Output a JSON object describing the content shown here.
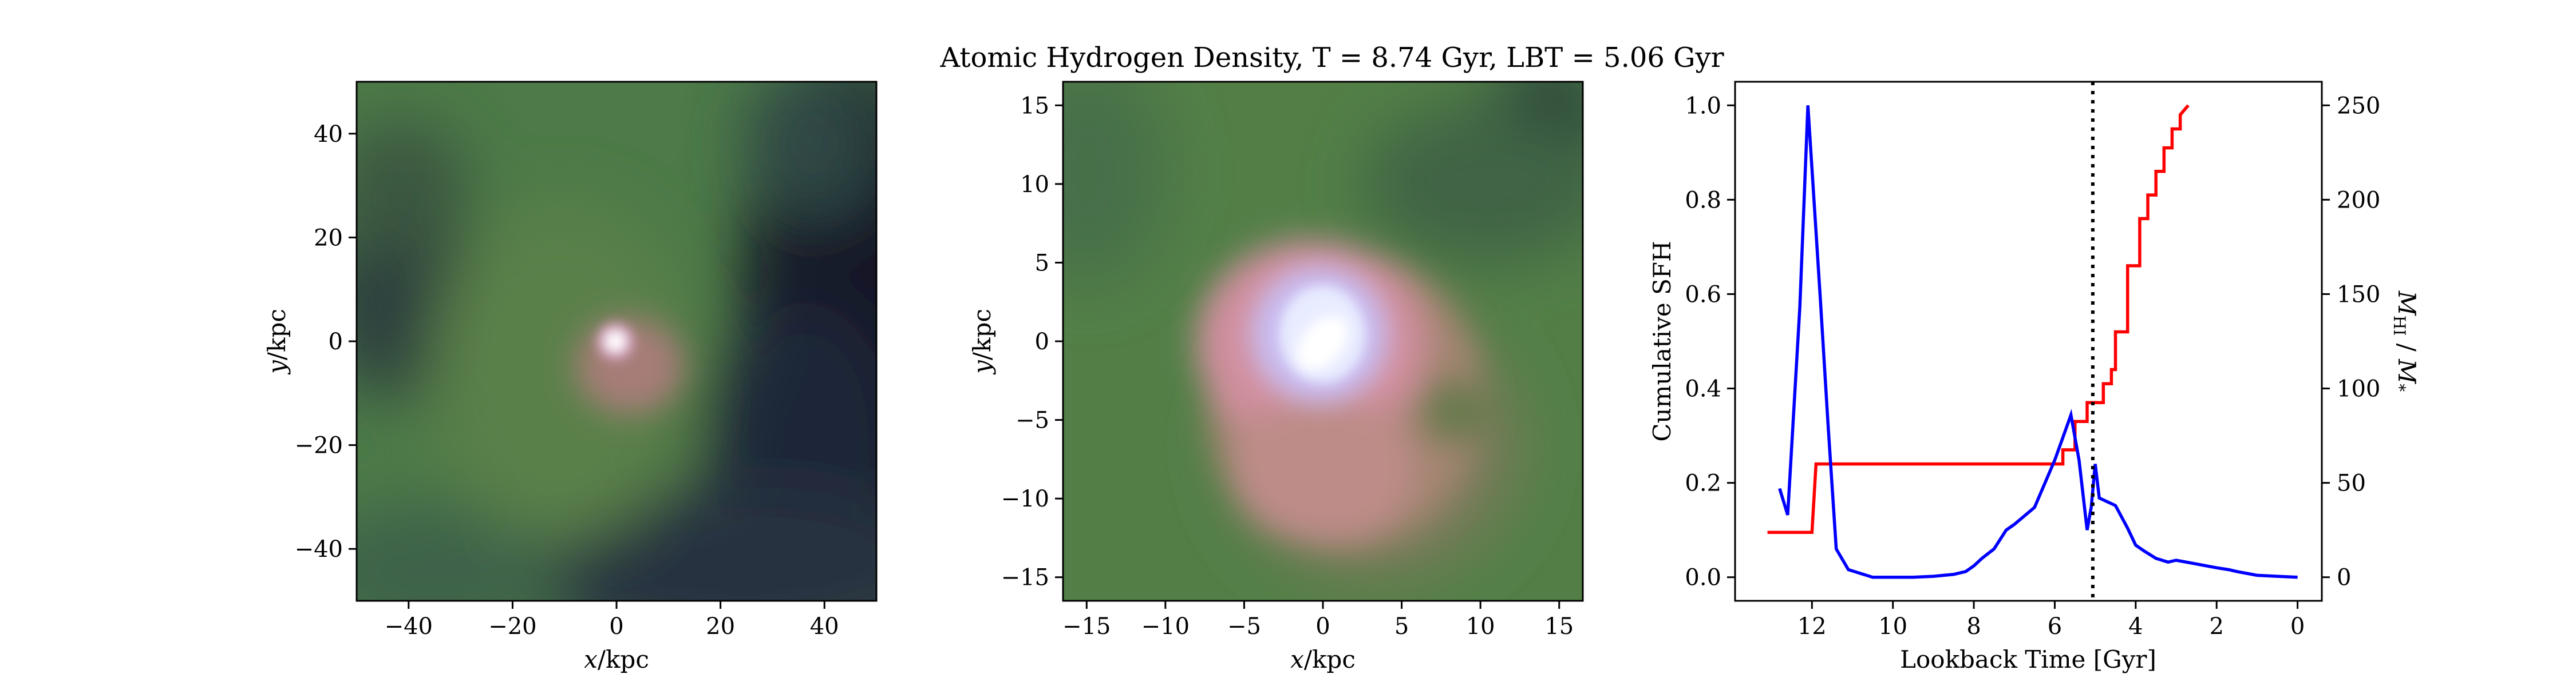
{
  "title": "Atomic Hydrogen Density, T = 8.74 Gyr, LBT = 5.06 Gyr",
  "colors": {
    "cumulative_sfh": "#ff0000",
    "hi_ratio": "#0000ff",
    "marker_line": "#000000",
    "map_background": "#4c7a45",
    "map_dark": "#141a2c",
    "map_pink": "#cf8e9a",
    "map_core": "#f4f6ff"
  },
  "chart_data": [
    {
      "type": "heatmap",
      "name": "wide-view",
      "title": "",
      "xlabel": "x / kpc",
      "ylabel": "y / kpc",
      "xlim": [
        -50,
        50
      ],
      "ylim": [
        -50,
        50
      ],
      "xticks": [
        -40,
        -20,
        0,
        20,
        40
      ],
      "yticks": [
        -40,
        -20,
        0,
        20,
        40
      ],
      "description": "atomic hydrogen density map"
    },
    {
      "type": "heatmap",
      "name": "zoom-view",
      "title": "",
      "xlabel": "x / kpc",
      "ylabel": "y / kpc",
      "xlim": [
        -16.5,
        16.5
      ],
      "ylim": [
        -16.5,
        16.5
      ],
      "xticks": [
        -15,
        -10,
        -5,
        0,
        5,
        10,
        15
      ],
      "yticks": [
        -15,
        -10,
        -5,
        0,
        5,
        10,
        15
      ],
      "description": "atomic hydrogen density map (zoom)"
    },
    {
      "type": "line",
      "name": "history",
      "xlabel": "Lookback Time [Gyr]",
      "ylabel": "Cumulative SFH",
      "ylabel_right": "M_HI / M_*",
      "xlim": [
        13.9,
        -0.6
      ],
      "xticks": [
        12,
        10,
        8,
        6,
        4,
        2,
        0
      ],
      "ylim": [
        -0.05,
        1.05
      ],
      "yticks": [
        0.0,
        0.2,
        0.4,
        0.6,
        0.8,
        1.0
      ],
      "ylim_right": [
        -12.5,
        262.5
      ],
      "yticks_right": [
        0,
        50,
        100,
        150,
        200,
        250
      ],
      "vline": 5.06,
      "series": [
        {
          "role": "cumulative_sfh",
          "axis": "left",
          "color": "#ff0000",
          "step": true,
          "x": [
            13.1,
            12.0,
            11.9,
            5.8,
            5.8,
            5.5,
            5.5,
            5.2,
            5.2,
            4.8,
            4.8,
            4.6,
            4.6,
            4.5,
            4.5,
            4.2,
            4.2,
            3.9,
            3.9,
            3.7,
            3.7,
            3.5,
            3.5,
            3.3,
            3.3,
            3.1,
            3.1,
            2.9,
            2.9,
            2.7
          ],
          "y": [
            0.095,
            0.095,
            0.24,
            0.24,
            0.27,
            0.27,
            0.33,
            0.33,
            0.37,
            0.37,
            0.41,
            0.41,
            0.44,
            0.44,
            0.52,
            0.52,
            0.66,
            0.66,
            0.76,
            0.76,
            0.81,
            0.81,
            0.86,
            0.86,
            0.91,
            0.91,
            0.95,
            0.95,
            0.98,
            1.0
          ]
        },
        {
          "role": "hi_ratio",
          "axis": "right",
          "color": "#0000ff",
          "step": false,
          "x": [
            12.8,
            12.6,
            12.3,
            12.1,
            11.8,
            11.6,
            11.4,
            11.1,
            10.5,
            10.0,
            9.5,
            9.0,
            8.5,
            8.2,
            8.0,
            7.8,
            7.5,
            7.2,
            7.0,
            6.5,
            6.0,
            5.8,
            5.6,
            5.4,
            5.2,
            5.1,
            5.0,
            4.9,
            4.7,
            4.5,
            4.2,
            4.0,
            3.8,
            3.5,
            3.2,
            3.0,
            2.5,
            2.0,
            1.7,
            1.5,
            1.0,
            0.5,
            0.0
          ],
          "y": [
            47,
            33,
            143,
            250,
            150,
            80,
            15,
            4,
            0,
            0,
            0,
            0.5,
            1.5,
            3,
            6,
            10,
            15,
            25,
            28,
            37,
            62,
            74,
            86,
            62,
            25,
            37,
            60,
            42,
            40,
            38,
            26,
            17,
            14,
            10,
            8,
            9,
            7,
            5,
            4,
            3,
            1,
            0.5,
            0
          ]
        }
      ]
    }
  ]
}
